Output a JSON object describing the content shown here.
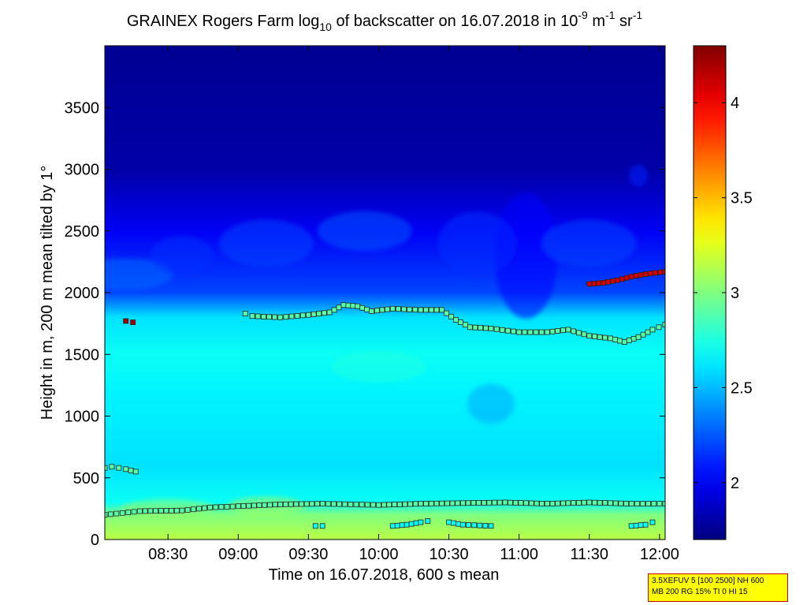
{
  "chart_data": {
    "type": "heatmap",
    "title": {
      "part1": "GRAINEX Rogers Farm log",
      "sub1": "10",
      "part2": " of backscatter on 16.07.2018 in 10",
      "sup1": "-9",
      "part3": " m",
      "sup2": "-1",
      "part4": " sr",
      "sup3": "-1"
    },
    "xlabel": "Time on 16.07.2018, 600 s mean",
    "ylabel": "Height in m, 200 m mean tilted by 1°",
    "x_ticks": [
      "08:30",
      "09:00",
      "09:30",
      "10:00",
      "10:30",
      "11:00",
      "11:30",
      "12:00"
    ],
    "x_tick_hours": [
      8.5,
      9.0,
      9.5,
      10.0,
      10.5,
      11.0,
      11.5,
      12.0
    ],
    "xlim_hours": [
      8.05,
      12.04
    ],
    "y_ticks": [
      "0",
      "500",
      "1000",
      "1500",
      "2000",
      "2500",
      "3000",
      "3500"
    ],
    "y_tick_values": [
      0,
      500,
      1000,
      1500,
      2000,
      2500,
      3000,
      3500
    ],
    "ylim": [
      0,
      4000
    ],
    "colorbar": {
      "ticks": [
        "2",
        "2.5",
        "3",
        "3.5",
        "4"
      ],
      "tick_values": [
        2,
        2.5,
        3,
        3.5,
        4
      ],
      "range": [
        1.7,
        4.3
      ],
      "colormap": "jet"
    },
    "field_profile": [
      {
        "height": 0,
        "value": 3.15
      },
      {
        "height": 200,
        "value": 3.0
      },
      {
        "height": 300,
        "value": 2.7
      },
      {
        "height": 600,
        "value": 2.6
      },
      {
        "height": 1200,
        "value": 2.65
      },
      {
        "height": 1500,
        "value": 2.7
      },
      {
        "height": 1800,
        "value": 2.6
      },
      {
        "height": 2000,
        "value": 2.2
      },
      {
        "height": 2500,
        "value": 2.0
      },
      {
        "height": 3000,
        "value": 1.8
      },
      {
        "height": 4000,
        "value": 1.75
      }
    ],
    "series": [
      {
        "points": [
          [
            8.05,
            200
          ],
          [
            8.3,
            230
          ],
          [
            8.6,
            235
          ],
          [
            8.8,
            260
          ],
          [
            9.0,
            270
          ],
          [
            9.3,
            285
          ],
          [
            9.6,
            290
          ],
          [
            10.0,
            280
          ],
          [
            10.3,
            290
          ],
          [
            10.6,
            295
          ],
          [
            10.9,
            300
          ],
          [
            11.2,
            290
          ],
          [
            11.5,
            300
          ],
          [
            11.8,
            290
          ],
          [
            12.04,
            290
          ]
        ],
        "value": 2.9
      },
      {
        "points": [
          [
            8.05,
            580
          ],
          [
            8.1,
            590
          ],
          [
            8.15,
            580
          ],
          [
            8.2,
            570
          ],
          [
            8.27,
            550
          ]
        ],
        "value": 2.9
      },
      {
        "points": [
          [
            9.05,
            1830
          ],
          [
            9.1,
            1810
          ],
          [
            9.3,
            1800
          ],
          [
            9.5,
            1820
          ],
          [
            9.65,
            1840
          ],
          [
            9.75,
            1900
          ],
          [
            9.85,
            1890
          ],
          [
            9.95,
            1850
          ],
          [
            10.1,
            1870
          ],
          [
            10.3,
            1860
          ],
          [
            10.45,
            1860
          ],
          [
            10.55,
            1780
          ],
          [
            10.65,
            1720
          ],
          [
            10.8,
            1710
          ],
          [
            11.0,
            1680
          ],
          [
            11.2,
            1680
          ],
          [
            11.35,
            1700
          ],
          [
            11.5,
            1650
          ],
          [
            11.65,
            1630
          ],
          [
            11.75,
            1600
          ],
          [
            11.85,
            1640
          ],
          [
            11.95,
            1700
          ],
          [
            12.04,
            1740
          ]
        ],
        "value": 2.9
      },
      {
        "points": [
          [
            11.5,
            2070
          ],
          [
            11.6,
            2080
          ],
          [
            11.7,
            2100
          ],
          [
            11.8,
            2130
          ],
          [
            11.9,
            2150
          ],
          [
            12.04,
            2170
          ]
        ],
        "value": 4.1
      },
      {
        "points": [
          [
            8.2,
            1770
          ],
          [
            8.25,
            1760
          ]
        ],
        "value": 4.2
      },
      {
        "points": [
          [
            9.55,
            110
          ],
          [
            9.6,
            110
          ]
        ],
        "value": 2.7
      },
      {
        "points": [
          [
            10.1,
            110
          ],
          [
            10.2,
            120
          ],
          [
            10.3,
            140
          ],
          [
            10.35,
            150
          ]
        ],
        "value": 2.7
      },
      {
        "points": [
          [
            10.5,
            140
          ],
          [
            10.6,
            120
          ],
          [
            10.8,
            110
          ]
        ],
        "value": 2.7
      },
      {
        "points": [
          [
            11.8,
            110
          ],
          [
            11.9,
            120
          ],
          [
            11.95,
            140
          ]
        ],
        "value": 2.7
      }
    ]
  },
  "info_box": {
    "line1": "3.5XEFUV 5 [100 2500] NH 600",
    "line2": "MB 200 RG 15% TI 0 HI 15"
  }
}
